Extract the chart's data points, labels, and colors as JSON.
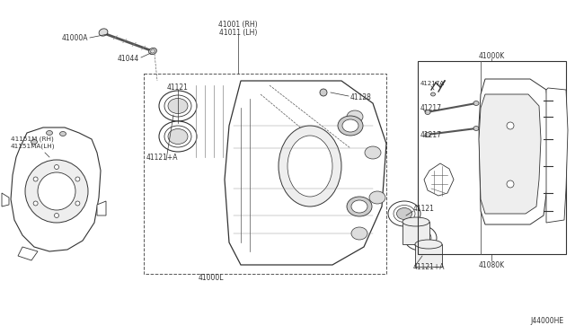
{
  "bg_color": "#ffffff",
  "fig_width": 6.4,
  "fig_height": 3.72,
  "dpi": 100,
  "parts": {
    "bolt_label": "41000A",
    "bolt_sub_label": "41044",
    "caliper_rh": "41001 (RH)",
    "caliper_lh": "41011 (LH)",
    "piston_label": "41121",
    "piston_a_label_left": "41121+A",
    "piston_a_label_right": "41121+A",
    "seal_label": "41128",
    "caliper_body": "41000L",
    "brake_pad_rh": "41151M (RH)",
    "brake_pad_lh": "41151MA(LH)",
    "pad_spring_a": "41217A",
    "pad_spring": "41217",
    "pad_kit": "41000K",
    "pad_kit_sub": "41080K",
    "bottom_label": "J44000HE"
  },
  "colors": {
    "line": "#333333",
    "light_gray": "#cccccc",
    "mid_gray": "#999999",
    "text": "#333333"
  }
}
